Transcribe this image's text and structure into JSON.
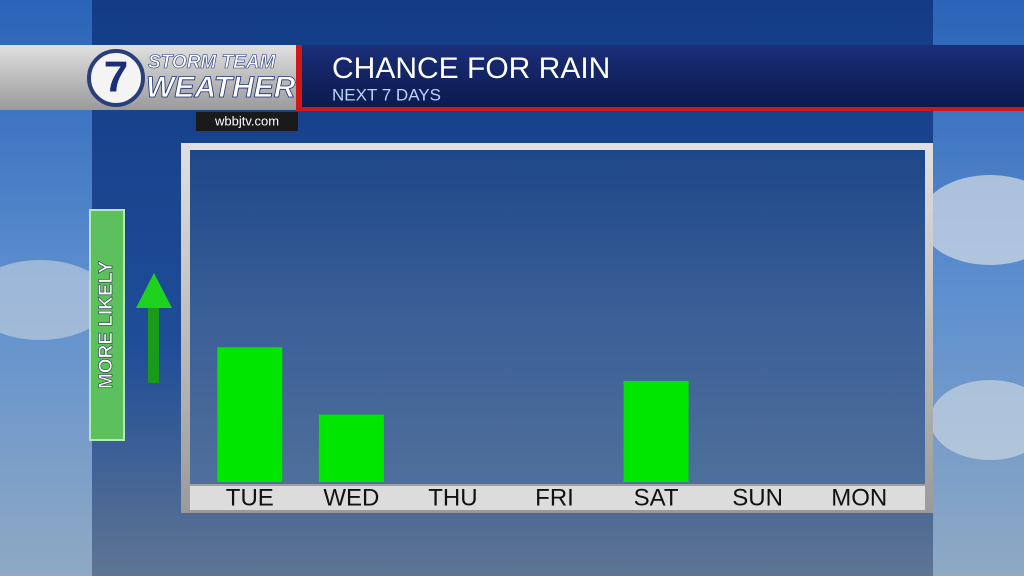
{
  "header": {
    "brand_top": "STORM TEAM",
    "brand_bottom": "WEATHER",
    "logo": "7",
    "website": "wbbjtv.com"
  },
  "chart_data": {
    "type": "bar",
    "title": "CHANCE FOR RAIN",
    "subtitle": "NEXT 7 DAYS",
    "y_label": "MORE LIKELY",
    "categories": [
      "TUE",
      "WED",
      "THU",
      "FRI",
      "SAT",
      "SUN",
      "MON"
    ],
    "values": [
      40,
      20,
      0,
      0,
      30,
      0,
      0
    ],
    "color": "#00e600",
    "ylim": [
      0,
      100
    ]
  }
}
